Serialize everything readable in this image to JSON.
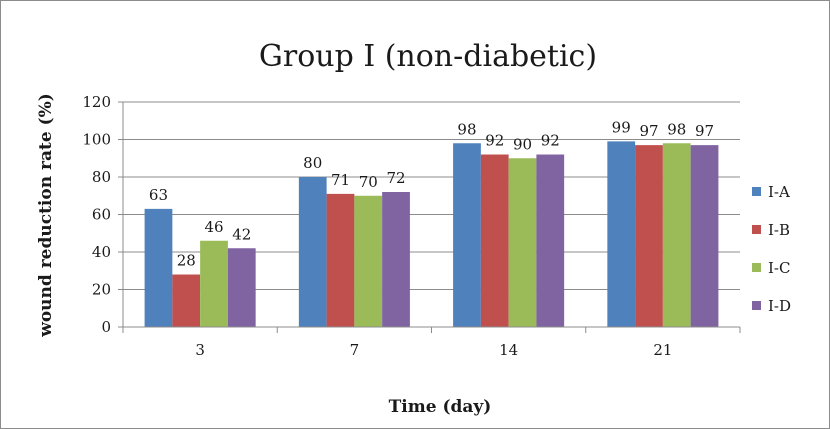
{
  "chart_data": {
    "type": "bar",
    "title": "Group I (non-diabetic)",
    "xlabel": "Time (day)",
    "ylabel": "wound reduction rate (%)",
    "categories": [
      "3",
      "7",
      "14",
      "21"
    ],
    "ylim": [
      0,
      120
    ],
    "yticks": [
      0,
      20,
      40,
      60,
      80,
      100,
      120
    ],
    "grid": true,
    "legend_position": "right",
    "series": [
      {
        "name": "I-A",
        "values": [
          63,
          80,
          98,
          99
        ],
        "color": "#4f81bd"
      },
      {
        "name": "I-B",
        "values": [
          28,
          71,
          92,
          97
        ],
        "color": "#c0504d"
      },
      {
        "name": "I-C",
        "values": [
          46,
          70,
          90,
          98
        ],
        "color": "#9bbb59"
      },
      {
        "name": "I-D",
        "values": [
          42,
          72,
          92,
          97
        ],
        "color": "#8064a2"
      }
    ]
  }
}
